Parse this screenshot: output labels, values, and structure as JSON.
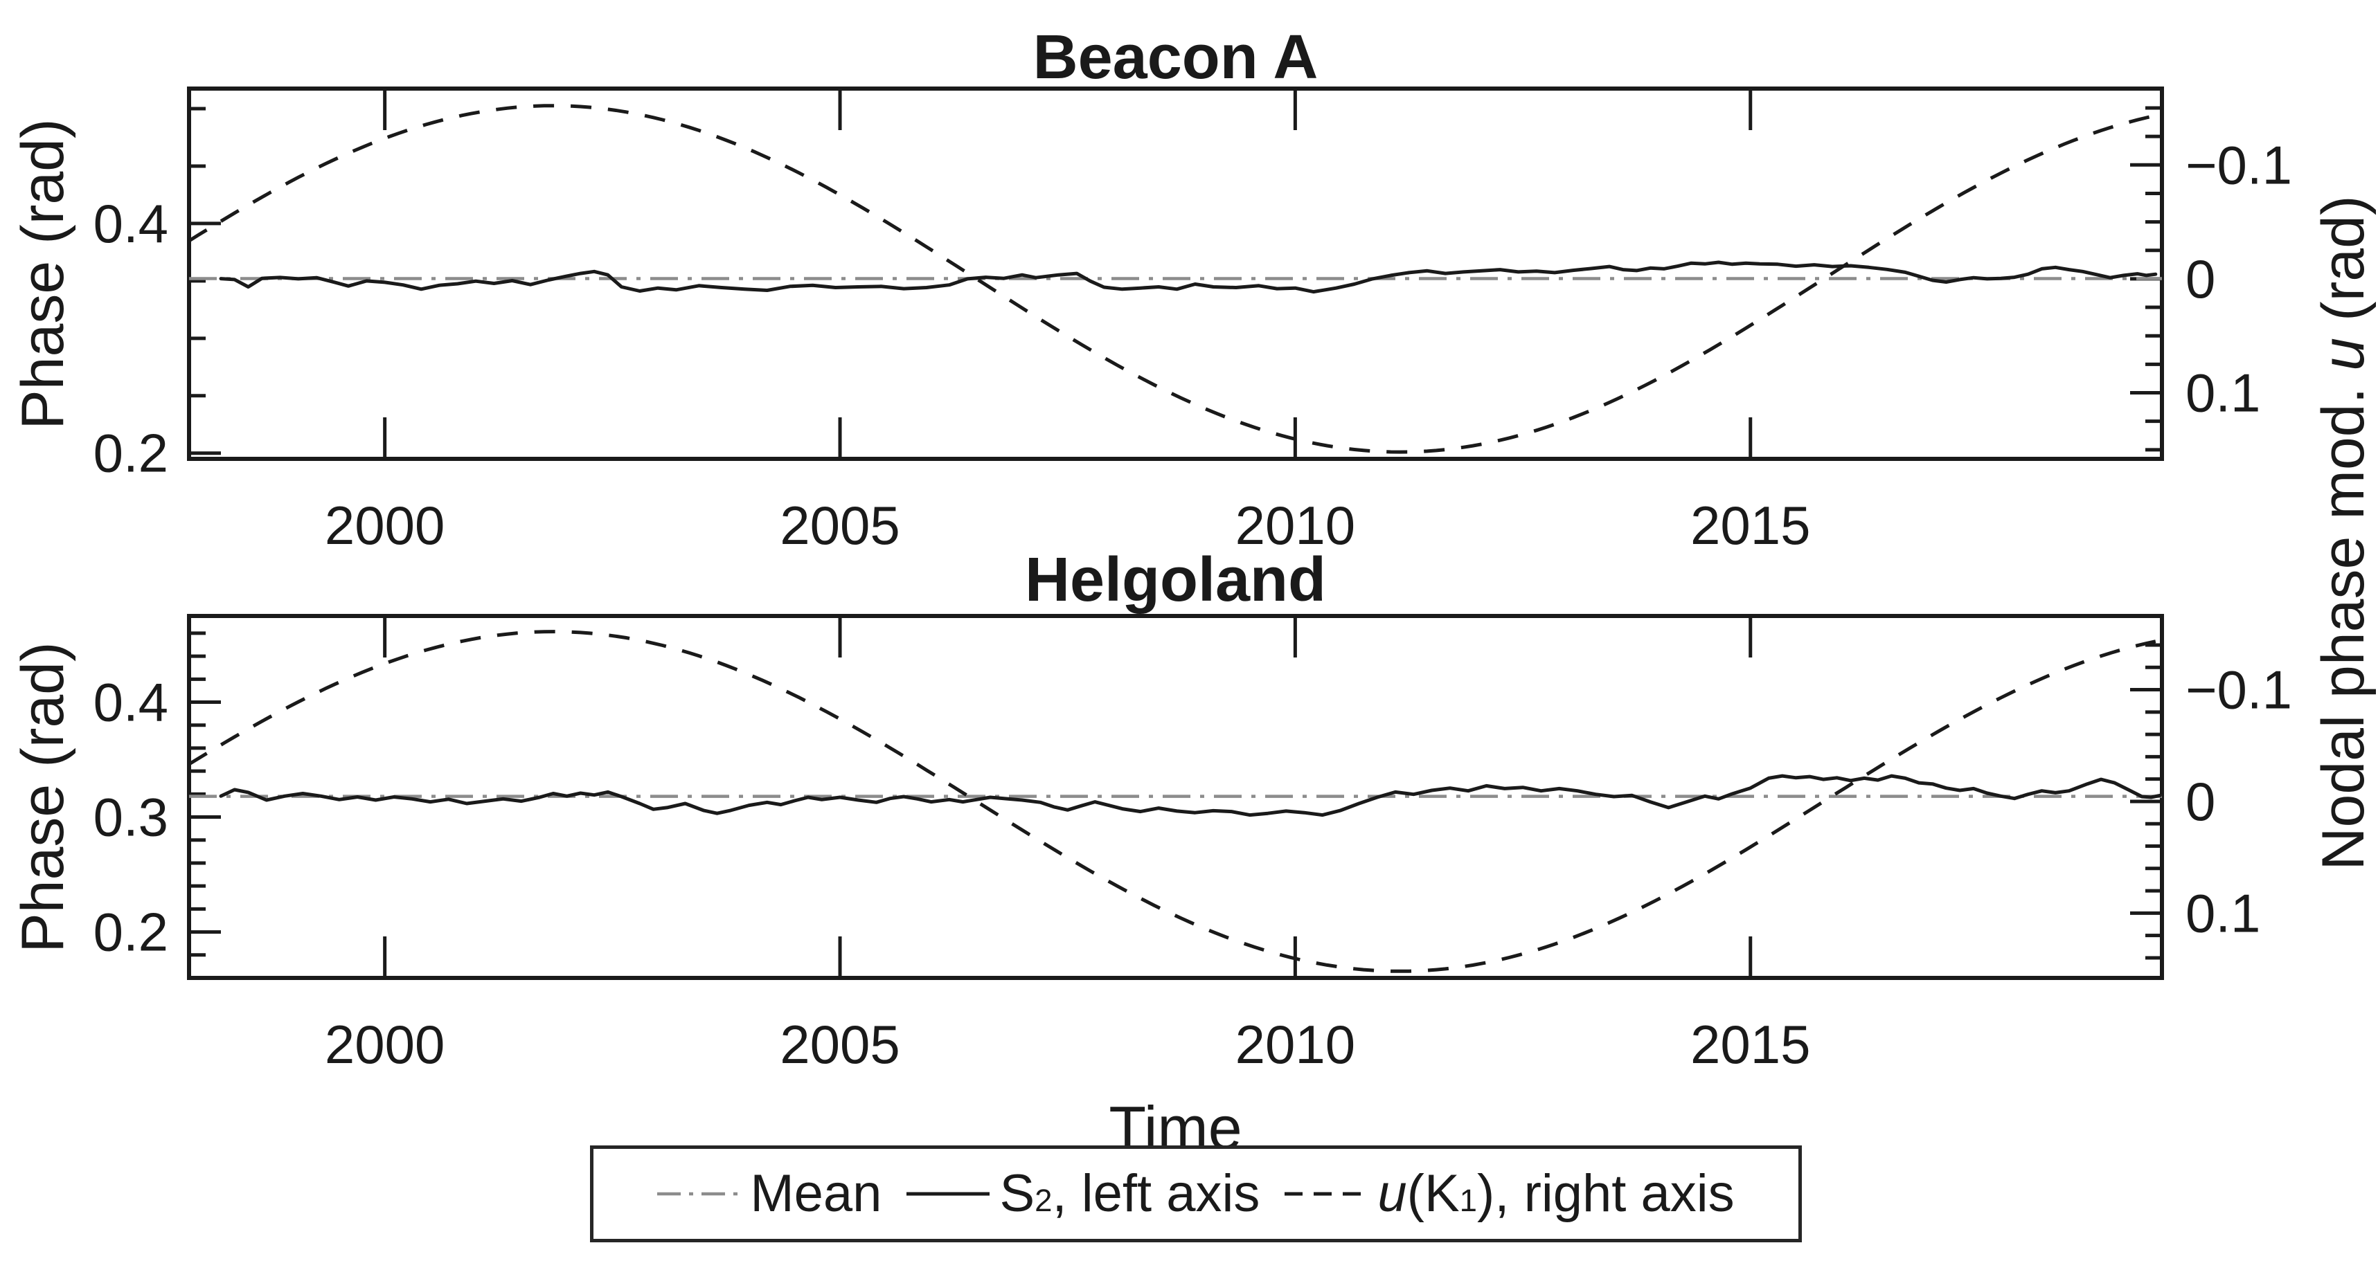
{
  "figure": {
    "bg": "#ffffff",
    "ink": "#1a1a1a",
    "mean_gray": "#8c8c8c"
  },
  "xlabel": "Time",
  "right_axis_label_tokens": [
    {
      "t": "Nodal phase mod. "
    },
    {
      "t": "u",
      "italic": true
    },
    {
      "t": " (rad)"
    }
  ],
  "legend": {
    "entries": [
      {
        "name": "mean",
        "style": "dashdot",
        "color": "#8c8c8c",
        "tokens": [
          {
            "t": "Mean"
          }
        ]
      },
      {
        "name": "s2",
        "style": "solid",
        "color": "#1a1a1a",
        "tokens": [
          {
            "t": "S"
          },
          {
            "t": "2",
            "sub": true
          },
          {
            "t": ", left axis"
          }
        ]
      },
      {
        "name": "u-k1",
        "style": "dashed",
        "color": "#1a1a1a",
        "tokens": [
          {
            "t": "u",
            "italic": true
          },
          {
            "t": "(K"
          },
          {
            "t": "1",
            "sub": true
          },
          {
            "t": "), right axis"
          }
        ]
      }
    ]
  },
  "chart_data": {
    "type": "line",
    "x_axis": {
      "label": "Time",
      "xlim": [
        1997.85,
        2019.52
      ],
      "ticks": [
        {
          "v": 2000,
          "label": "2000"
        },
        {
          "v": 2005,
          "label": "2005"
        },
        {
          "v": 2010,
          "label": "2010"
        },
        {
          "v": 2015,
          "label": "2015"
        }
      ]
    },
    "nodal_modulation": {
      "name": "u(K1)",
      "axis": "right",
      "form": "u(t) = A*sin(2*pi*(t0-t)/P)",
      "A": -0.152,
      "P": 18.61,
      "t0": 2006.5,
      "sample_step_years": 0.1
    },
    "plots": [
      {
        "title": "Beacon A",
        "ylabel_left": "Phase (rad)",
        "ylim_left": {
          "bottom": 0.195,
          "top": 0.5175
        },
        "yticks_left": {
          "major": [
            {
              "v": 0.4,
              "label": "0.4"
            },
            {
              "v": 0.2,
              "label": "0.2"
            }
          ],
          "minor": [
            0.25,
            0.3,
            0.35,
            0.45,
            0.5
          ]
        },
        "ylim_right": {
          "top": -0.167,
          "bottom": 0.158
        },
        "yticks_right": {
          "major": [
            {
              "v": -0.1,
              "label": "−0.1"
            },
            {
              "v": 0,
              "label": "0"
            },
            {
              "v": 0.1,
              "label": "0.1"
            }
          ],
          "minor": [
            -0.15,
            -0.125,
            -0.075,
            -0.05,
            -0.025,
            0.025,
            0.05,
            0.075,
            0.125,
            0.15
          ]
        },
        "mean": 0.352,
        "s2_points": [
          [
            1998.2,
            0.352
          ],
          [
            1998.35,
            0.3512
          ],
          [
            1998.5,
            0.3448
          ],
          [
            1998.65,
            0.3522
          ],
          [
            1998.85,
            0.353
          ],
          [
            1999.05,
            0.3518
          ],
          [
            1999.25,
            0.3528
          ],
          [
            1999.45,
            0.3488
          ],
          [
            1999.6,
            0.3455
          ],
          [
            1999.8,
            0.35
          ],
          [
            2000.0,
            0.3488
          ],
          [
            2000.2,
            0.3465
          ],
          [
            2000.4,
            0.3428
          ],
          [
            2000.6,
            0.3462
          ],
          [
            2000.8,
            0.3475
          ],
          [
            2001.0,
            0.3498
          ],
          [
            2001.2,
            0.3478
          ],
          [
            2001.4,
            0.3502
          ],
          [
            2001.6,
            0.3468
          ],
          [
            2001.8,
            0.3508
          ],
          [
            2002.0,
            0.3542
          ],
          [
            2002.15,
            0.3565
          ],
          [
            2002.3,
            0.3582
          ],
          [
            2002.45,
            0.3552
          ],
          [
            2002.6,
            0.3448
          ],
          [
            2002.8,
            0.3412
          ],
          [
            2003.0,
            0.3438
          ],
          [
            2003.2,
            0.3422
          ],
          [
            2003.45,
            0.3458
          ],
          [
            2003.7,
            0.3442
          ],
          [
            2003.95,
            0.3428
          ],
          [
            2004.2,
            0.3418
          ],
          [
            2004.45,
            0.3452
          ],
          [
            2004.7,
            0.3462
          ],
          [
            2004.95,
            0.3442
          ],
          [
            2005.2,
            0.3448
          ],
          [
            2005.45,
            0.3452
          ],
          [
            2005.7,
            0.3432
          ],
          [
            2005.95,
            0.3442
          ],
          [
            2006.2,
            0.3465
          ],
          [
            2006.4,
            0.3518
          ],
          [
            2006.6,
            0.3532
          ],
          [
            2006.8,
            0.3522
          ],
          [
            2007.0,
            0.3552
          ],
          [
            2007.15,
            0.3528
          ],
          [
            2007.4,
            0.3552
          ],
          [
            2007.6,
            0.3565
          ],
          [
            2007.75,
            0.3498
          ],
          [
            2007.9,
            0.3445
          ],
          [
            2008.1,
            0.3428
          ],
          [
            2008.3,
            0.3438
          ],
          [
            2008.5,
            0.3448
          ],
          [
            2008.7,
            0.3428
          ],
          [
            2008.9,
            0.3472
          ],
          [
            2009.1,
            0.3448
          ],
          [
            2009.35,
            0.3442
          ],
          [
            2009.6,
            0.3458
          ],
          [
            2009.8,
            0.3432
          ],
          [
            2010.0,
            0.3438
          ],
          [
            2010.2,
            0.3405
          ],
          [
            2010.45,
            0.3438
          ],
          [
            2010.65,
            0.3472
          ],
          [
            2010.85,
            0.3518
          ],
          [
            2011.05,
            0.3548
          ],
          [
            2011.25,
            0.3572
          ],
          [
            2011.45,
            0.3588
          ],
          [
            2011.65,
            0.3565
          ],
          [
            2011.85,
            0.3578
          ],
          [
            2012.05,
            0.3588
          ],
          [
            2012.25,
            0.3598
          ],
          [
            2012.45,
            0.3578
          ],
          [
            2012.65,
            0.3585
          ],
          [
            2012.85,
            0.3572
          ],
          [
            2013.05,
            0.3592
          ],
          [
            2013.25,
            0.3608
          ],
          [
            2013.45,
            0.3625
          ],
          [
            2013.6,
            0.3598
          ],
          [
            2013.75,
            0.359
          ],
          [
            2013.9,
            0.3612
          ],
          [
            2014.05,
            0.3605
          ],
          [
            2014.2,
            0.3628
          ],
          [
            2014.35,
            0.3655
          ],
          [
            2014.5,
            0.3648
          ],
          [
            2014.65,
            0.3662
          ],
          [
            2014.8,
            0.3645
          ],
          [
            2014.95,
            0.3655
          ],
          [
            2015.1,
            0.3648
          ],
          [
            2015.3,
            0.3645
          ],
          [
            2015.5,
            0.3628
          ],
          [
            2015.7,
            0.364
          ],
          [
            2015.9,
            0.3625
          ],
          [
            2016.1,
            0.3632
          ],
          [
            2016.3,
            0.3618
          ],
          [
            2016.5,
            0.36
          ],
          [
            2016.7,
            0.3575
          ],
          [
            2016.85,
            0.354
          ],
          [
            2017.0,
            0.3505
          ],
          [
            2017.15,
            0.349
          ],
          [
            2017.3,
            0.3512
          ],
          [
            2017.45,
            0.3528
          ],
          [
            2017.6,
            0.3518
          ],
          [
            2017.75,
            0.3522
          ],
          [
            2017.9,
            0.3532
          ],
          [
            2018.05,
            0.3558
          ],
          [
            2018.2,
            0.3605
          ],
          [
            2018.35,
            0.3618
          ],
          [
            2018.5,
            0.3598
          ],
          [
            2018.65,
            0.3582
          ],
          [
            2018.8,
            0.3555
          ],
          [
            2018.95,
            0.3528
          ],
          [
            2019.1,
            0.3548
          ],
          [
            2019.25,
            0.3562
          ],
          [
            2019.35,
            0.3548
          ],
          [
            2019.45,
            0.3558
          ]
        ]
      },
      {
        "title": "Helgoland",
        "ylabel_left": "Phase (rad)",
        "ylim_left": {
          "bottom": 0.16,
          "top": 0.475
        },
        "yticks_left": {
          "major": [
            {
              "v": 0.4,
              "label": "0.4"
            },
            {
              "v": 0.3,
              "label": "0.3"
            },
            {
              "v": 0.2,
              "label": "0.2"
            }
          ],
          "minor": [
            0.18,
            0.22,
            0.24,
            0.26,
            0.28,
            0.32,
            0.34,
            0.36,
            0.38,
            0.42,
            0.44,
            0.46
          ]
        },
        "ylim_right": {
          "top": -0.166,
          "bottom": 0.158
        },
        "yticks_right": {
          "major": [
            {
              "v": -0.1,
              "label": "−0.1"
            },
            {
              "v": 0,
              "label": "0"
            },
            {
              "v": 0.1,
              "label": "0.1"
            }
          ],
          "minor": [
            -0.14,
            -0.12,
            -0.08,
            -0.06,
            -0.04,
            -0.02,
            0.02,
            0.04,
            0.06,
            0.08,
            0.12,
            0.14
          ]
        },
        "mean": 0.318,
        "s2_points": [
          [
            1998.2,
            0.3182
          ],
          [
            1998.35,
            0.3238
          ],
          [
            1998.5,
            0.3215
          ],
          [
            1998.7,
            0.3148
          ],
          [
            1998.9,
            0.3182
          ],
          [
            1999.1,
            0.3205
          ],
          [
            1999.3,
            0.3182
          ],
          [
            1999.5,
            0.3152
          ],
          [
            1999.7,
            0.3175
          ],
          [
            1999.9,
            0.3148
          ],
          [
            2000.1,
            0.3175
          ],
          [
            2000.3,
            0.3158
          ],
          [
            2000.5,
            0.3132
          ],
          [
            2000.7,
            0.3155
          ],
          [
            2000.9,
            0.3118
          ],
          [
            2001.1,
            0.3138
          ],
          [
            2001.3,
            0.3158
          ],
          [
            2001.5,
            0.3138
          ],
          [
            2001.7,
            0.3172
          ],
          [
            2001.85,
            0.3205
          ],
          [
            2002.0,
            0.3182
          ],
          [
            2002.15,
            0.3208
          ],
          [
            2002.3,
            0.3192
          ],
          [
            2002.45,
            0.3218
          ],
          [
            2002.6,
            0.3178
          ],
          [
            2002.8,
            0.3118
          ],
          [
            2002.95,
            0.3068
          ],
          [
            2003.1,
            0.3082
          ],
          [
            2003.3,
            0.3118
          ],
          [
            2003.5,
            0.3058
          ],
          [
            2003.65,
            0.3032
          ],
          [
            2003.8,
            0.3058
          ],
          [
            2004.0,
            0.3102
          ],
          [
            2004.2,
            0.3128
          ],
          [
            2004.35,
            0.3108
          ],
          [
            2004.5,
            0.3142
          ],
          [
            2004.65,
            0.3172
          ],
          [
            2004.8,
            0.3152
          ],
          [
            2005.0,
            0.3172
          ],
          [
            2005.2,
            0.3148
          ],
          [
            2005.4,
            0.3128
          ],
          [
            2005.55,
            0.3162
          ],
          [
            2005.7,
            0.3178
          ],
          [
            2005.85,
            0.3158
          ],
          [
            2006.0,
            0.3132
          ],
          [
            2006.2,
            0.3152
          ],
          [
            2006.35,
            0.3132
          ],
          [
            2006.5,
            0.3152
          ],
          [
            2006.65,
            0.3172
          ],
          [
            2006.8,
            0.3162
          ],
          [
            2007.0,
            0.3148
          ],
          [
            2007.2,
            0.3128
          ],
          [
            2007.35,
            0.3088
          ],
          [
            2007.5,
            0.3062
          ],
          [
            2007.65,
            0.3098
          ],
          [
            2007.8,
            0.3132
          ],
          [
            2007.95,
            0.3102
          ],
          [
            2008.1,
            0.3072
          ],
          [
            2008.3,
            0.3048
          ],
          [
            2008.5,
            0.3078
          ],
          [
            2008.7,
            0.3052
          ],
          [
            2008.9,
            0.3038
          ],
          [
            2009.1,
            0.3055
          ],
          [
            2009.3,
            0.3048
          ],
          [
            2009.5,
            0.3018
          ],
          [
            2009.7,
            0.3032
          ],
          [
            2009.9,
            0.3052
          ],
          [
            2010.1,
            0.3038
          ],
          [
            2010.3,
            0.3018
          ],
          [
            2010.5,
            0.3058
          ],
          [
            2010.7,
            0.3118
          ],
          [
            2010.9,
            0.3172
          ],
          [
            2011.1,
            0.3218
          ],
          [
            2011.3,
            0.3198
          ],
          [
            2011.5,
            0.3232
          ],
          [
            2011.7,
            0.3252
          ],
          [
            2011.9,
            0.3228
          ],
          [
            2012.1,
            0.3272
          ],
          [
            2012.3,
            0.3248
          ],
          [
            2012.5,
            0.3258
          ],
          [
            2012.7,
            0.3228
          ],
          [
            2012.9,
            0.3248
          ],
          [
            2013.1,
            0.3228
          ],
          [
            2013.3,
            0.3198
          ],
          [
            2013.5,
            0.3178
          ],
          [
            2013.7,
            0.3188
          ],
          [
            2013.9,
            0.3132
          ],
          [
            2014.1,
            0.3082
          ],
          [
            2014.3,
            0.3132
          ],
          [
            2014.5,
            0.3182
          ],
          [
            2014.65,
            0.3158
          ],
          [
            2014.8,
            0.3202
          ],
          [
            2015.0,
            0.3252
          ],
          [
            2015.2,
            0.3338
          ],
          [
            2015.35,
            0.3358
          ],
          [
            2015.5,
            0.3342
          ],
          [
            2015.65,
            0.3352
          ],
          [
            2015.8,
            0.3328
          ],
          [
            2015.95,
            0.3342
          ],
          [
            2016.1,
            0.3318
          ],
          [
            2016.25,
            0.3338
          ],
          [
            2016.4,
            0.3322
          ],
          [
            2016.55,
            0.3358
          ],
          [
            2016.7,
            0.3338
          ],
          [
            2016.85,
            0.3298
          ],
          [
            2017.0,
            0.3288
          ],
          [
            2017.15,
            0.3252
          ],
          [
            2017.3,
            0.3232
          ],
          [
            2017.45,
            0.3248
          ],
          [
            2017.6,
            0.3208
          ],
          [
            2017.75,
            0.3182
          ],
          [
            2017.9,
            0.3162
          ],
          [
            2018.05,
            0.3198
          ],
          [
            2018.2,
            0.3228
          ],
          [
            2018.35,
            0.3212
          ],
          [
            2018.5,
            0.3228
          ],
          [
            2018.7,
            0.3288
          ],
          [
            2018.85,
            0.3328
          ],
          [
            2019.0,
            0.3298
          ],
          [
            2019.15,
            0.3238
          ],
          [
            2019.3,
            0.3178
          ],
          [
            2019.4,
            0.3172
          ],
          [
            2019.5,
            0.3188
          ]
        ]
      }
    ]
  }
}
